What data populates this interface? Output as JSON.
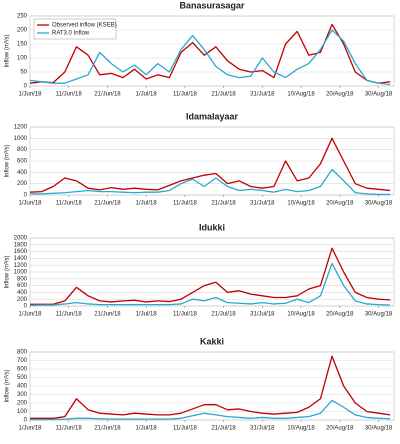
{
  "chart_data": [
    {
      "type": "line",
      "title": "Banasurasagar",
      "y_label": "Inflow (m³/s)",
      "legend": "upper left",
      "grid": true,
      "x": [
        "1/Jun/18",
        "4/Jun/18",
        "7/Jun/18",
        "10/Jun/18",
        "13/Jun/18",
        "16/Jun/18",
        "19/Jun/18",
        "22/Jun/18",
        "25/Jun/18",
        "28/Jun/18",
        "1/Jul/18",
        "4/Jul/18",
        "7/Jul/18",
        "10/Jul/18",
        "13/Jul/18",
        "16/Jul/18",
        "19/Jul/18",
        "22/Jul/18",
        "25/Jul/18",
        "28/Jul/18",
        "31/Jul/18",
        "3/Aug/18",
        "6/Aug/18",
        "9/Aug/18",
        "12/Aug/18",
        "15/Aug/18",
        "18/Aug/18",
        "21/Aug/18",
        "24/Aug/18",
        "27/Aug/18",
        "30/Aug/18",
        "2/Sep/18"
      ],
      "xlim": [
        "1/Jun/18",
        "3/Sep/18"
      ],
      "xticks": [
        "1/Jun/18",
        "11/Jun/18",
        "21/Jun/18",
        "1/Jul/18",
        "11/Jul/18",
        "21/Jul/18",
        "31/Jul/18",
        "10/Aug/18",
        "20/Aug/18",
        "30/Aug/18"
      ],
      "ylim": [
        0,
        250
      ],
      "yticks": [
        0,
        50,
        100,
        150,
        200,
        250
      ],
      "series": [
        {
          "name": "Observed inflow (KSEB)",
          "color": "#c00000",
          "values": [
            10,
            15,
            12,
            50,
            140,
            110,
            40,
            45,
            30,
            60,
            25,
            40,
            30,
            120,
            155,
            110,
            140,
            90,
            60,
            50,
            55,
            30,
            150,
            195,
            110,
            120,
            220,
            150,
            50,
            20,
            10,
            15
          ]
        },
        {
          "name": "RAT3.0 Inflow",
          "color": "#2aa8cf",
          "values": [
            20,
            15,
            10,
            10,
            25,
            40,
            120,
            80,
            50,
            75,
            40,
            80,
            50,
            130,
            180,
            130,
            70,
            40,
            30,
            35,
            100,
            50,
            30,
            60,
            80,
            130,
            200,
            160,
            80,
            20,
            10,
            5
          ]
        }
      ]
    },
    {
      "type": "line",
      "title": "Idamalayaar",
      "y_label": "Inflow (m³/s)",
      "grid": true,
      "x": [
        "1/Jun/18",
        "4/Jun/18",
        "7/Jun/18",
        "10/Jun/18",
        "13/Jun/18",
        "16/Jun/18",
        "19/Jun/18",
        "22/Jun/18",
        "25/Jun/18",
        "28/Jun/18",
        "1/Jul/18",
        "4/Jul/18",
        "7/Jul/18",
        "10/Jul/18",
        "13/Jul/18",
        "16/Jul/18",
        "19/Jul/18",
        "22/Jul/18",
        "25/Jul/18",
        "28/Jul/18",
        "31/Jul/18",
        "3/Aug/18",
        "6/Aug/18",
        "9/Aug/18",
        "12/Aug/18",
        "15/Aug/18",
        "18/Aug/18",
        "21/Aug/18",
        "24/Aug/18",
        "27/Aug/18",
        "30/Aug/18",
        "2/Sep/18"
      ],
      "xlim": [
        "1/Jun/18",
        "3/Sep/18"
      ],
      "xticks": [
        "1/Jun/18",
        "11/Jun/18",
        "21/Jun/18",
        "1/Jul/18",
        "11/Jul/18",
        "21/Jul/18",
        "31/Jul/18",
        "10/Aug/18",
        "20/Aug/18",
        "30/Aug/18"
      ],
      "ylim": [
        0,
        1200
      ],
      "yticks": [
        0,
        200,
        400,
        600,
        800,
        1000,
        1200
      ],
      "series": [
        {
          "color": "#c00000",
          "values": [
            50,
            60,
            150,
            300,
            250,
            120,
            90,
            130,
            100,
            120,
            100,
            90,
            170,
            250,
            300,
            350,
            380,
            200,
            250,
            150,
            120,
            150,
            600,
            250,
            300,
            550,
            1000,
            600,
            200,
            120,
            100,
            80
          ]
        },
        {
          "color": "#2aa8cf",
          "values": [
            20,
            20,
            30,
            40,
            60,
            80,
            60,
            60,
            50,
            40,
            50,
            50,
            80,
            200,
            280,
            150,
            300,
            150,
            80,
            100,
            80,
            50,
            100,
            60,
            80,
            150,
            450,
            250,
            40,
            20,
            10,
            10
          ]
        }
      ]
    },
    {
      "type": "line",
      "title": "Idukki",
      "y_label": "Inflow (m³/s)",
      "grid": true,
      "x": [
        "1/Jun/18",
        "4/Jun/18",
        "7/Jun/18",
        "10/Jun/18",
        "13/Jun/18",
        "16/Jun/18",
        "19/Jun/18",
        "22/Jun/18",
        "25/Jun/18",
        "28/Jun/18",
        "1/Jul/18",
        "4/Jul/18",
        "7/Jul/18",
        "10/Jul/18",
        "13/Jul/18",
        "16/Jul/18",
        "19/Jul/18",
        "22/Jul/18",
        "25/Jul/18",
        "28/Jul/18",
        "31/Jul/18",
        "3/Aug/18",
        "6/Aug/18",
        "9/Aug/18",
        "12/Aug/18",
        "15/Aug/18",
        "18/Aug/18",
        "21/Aug/18",
        "24/Aug/18",
        "27/Aug/18",
        "30/Aug/18",
        "2/Sep/18"
      ],
      "xlim": [
        "1/Jun/18",
        "3/Sep/18"
      ],
      "xticks": [
        "1/Jun/18",
        "11/Jun/18",
        "21/Jun/18",
        "1/Jul/18",
        "11/Jul/18",
        "21/Jul/18",
        "31/Jul/18",
        "10/Aug/18",
        "20/Aug/18",
        "30/Aug/18"
      ],
      "ylim": [
        0,
        2000
      ],
      "yticks": [
        0,
        200,
        400,
        600,
        800,
        1000,
        1200,
        1400,
        1600,
        1800,
        2000
      ],
      "series": [
        {
          "color": "#c00000",
          "values": [
            50,
            50,
            50,
            150,
            550,
            300,
            150,
            120,
            150,
            170,
            120,
            150,
            130,
            200,
            400,
            600,
            700,
            400,
            450,
            350,
            300,
            250,
            250,
            300,
            500,
            600,
            1700,
            1000,
            400,
            250,
            200,
            180
          ]
        },
        {
          "color": "#2aa8cf",
          "values": [
            20,
            30,
            30,
            60,
            100,
            60,
            40,
            40,
            40,
            40,
            40,
            40,
            40,
            60,
            200,
            150,
            250,
            100,
            80,
            60,
            100,
            60,
            80,
            200,
            100,
            300,
            1250,
            600,
            150,
            60,
            40,
            30
          ]
        }
      ]
    },
    {
      "type": "line",
      "title": "Kakki",
      "y_label": "Inflow (m³/s)",
      "grid": true,
      "x": [
        "1/Jun/18",
        "4/Jun/18",
        "7/Jun/18",
        "10/Jun/18",
        "13/Jun/18",
        "16/Jun/18",
        "19/Jun/18",
        "22/Jun/18",
        "25/Jun/18",
        "28/Jun/18",
        "1/Jul/18",
        "4/Jul/18",
        "7/Jul/18",
        "10/Jul/18",
        "13/Jul/18",
        "16/Jul/18",
        "19/Jul/18",
        "22/Jul/18",
        "25/Jul/18",
        "28/Jul/18",
        "31/Jul/18",
        "3/Aug/18",
        "6/Aug/18",
        "9/Aug/18",
        "12/Aug/18",
        "15/Aug/18",
        "18/Aug/18",
        "21/Aug/18",
        "24/Aug/18",
        "27/Aug/18",
        "30/Aug/18",
        "2/Sep/18"
      ],
      "xlim": [
        "1/Jun/18",
        "3/Sep/18"
      ],
      "xticks": [
        "1/Jun/18",
        "11/Jun/18",
        "21/Jun/18",
        "1/Jul/18",
        "11/Jul/18",
        "21/Jul/18",
        "31/Jul/18",
        "10/Aug/18",
        "20/Aug/18",
        "30/Aug/18"
      ],
      "ylim": [
        0,
        800
      ],
      "yticks": [
        0,
        100,
        200,
        300,
        400,
        500,
        600,
        700,
        800
      ],
      "series": [
        {
          "color": "#c00000",
          "values": [
            20,
            20,
            20,
            40,
            250,
            120,
            80,
            70,
            60,
            80,
            70,
            60,
            60,
            80,
            130,
            180,
            180,
            120,
            130,
            100,
            80,
            70,
            80,
            90,
            150,
            250,
            750,
            400,
            200,
            100,
            80,
            60
          ]
        },
        {
          "color": "#2aa8cf",
          "values": [
            5,
            5,
            5,
            10,
            20,
            20,
            15,
            10,
            10,
            10,
            10,
            10,
            10,
            20,
            50,
            80,
            60,
            40,
            30,
            20,
            30,
            20,
            20,
            30,
            40,
            80,
            230,
            150,
            60,
            30,
            20,
            15
          ]
        }
      ]
    }
  ]
}
